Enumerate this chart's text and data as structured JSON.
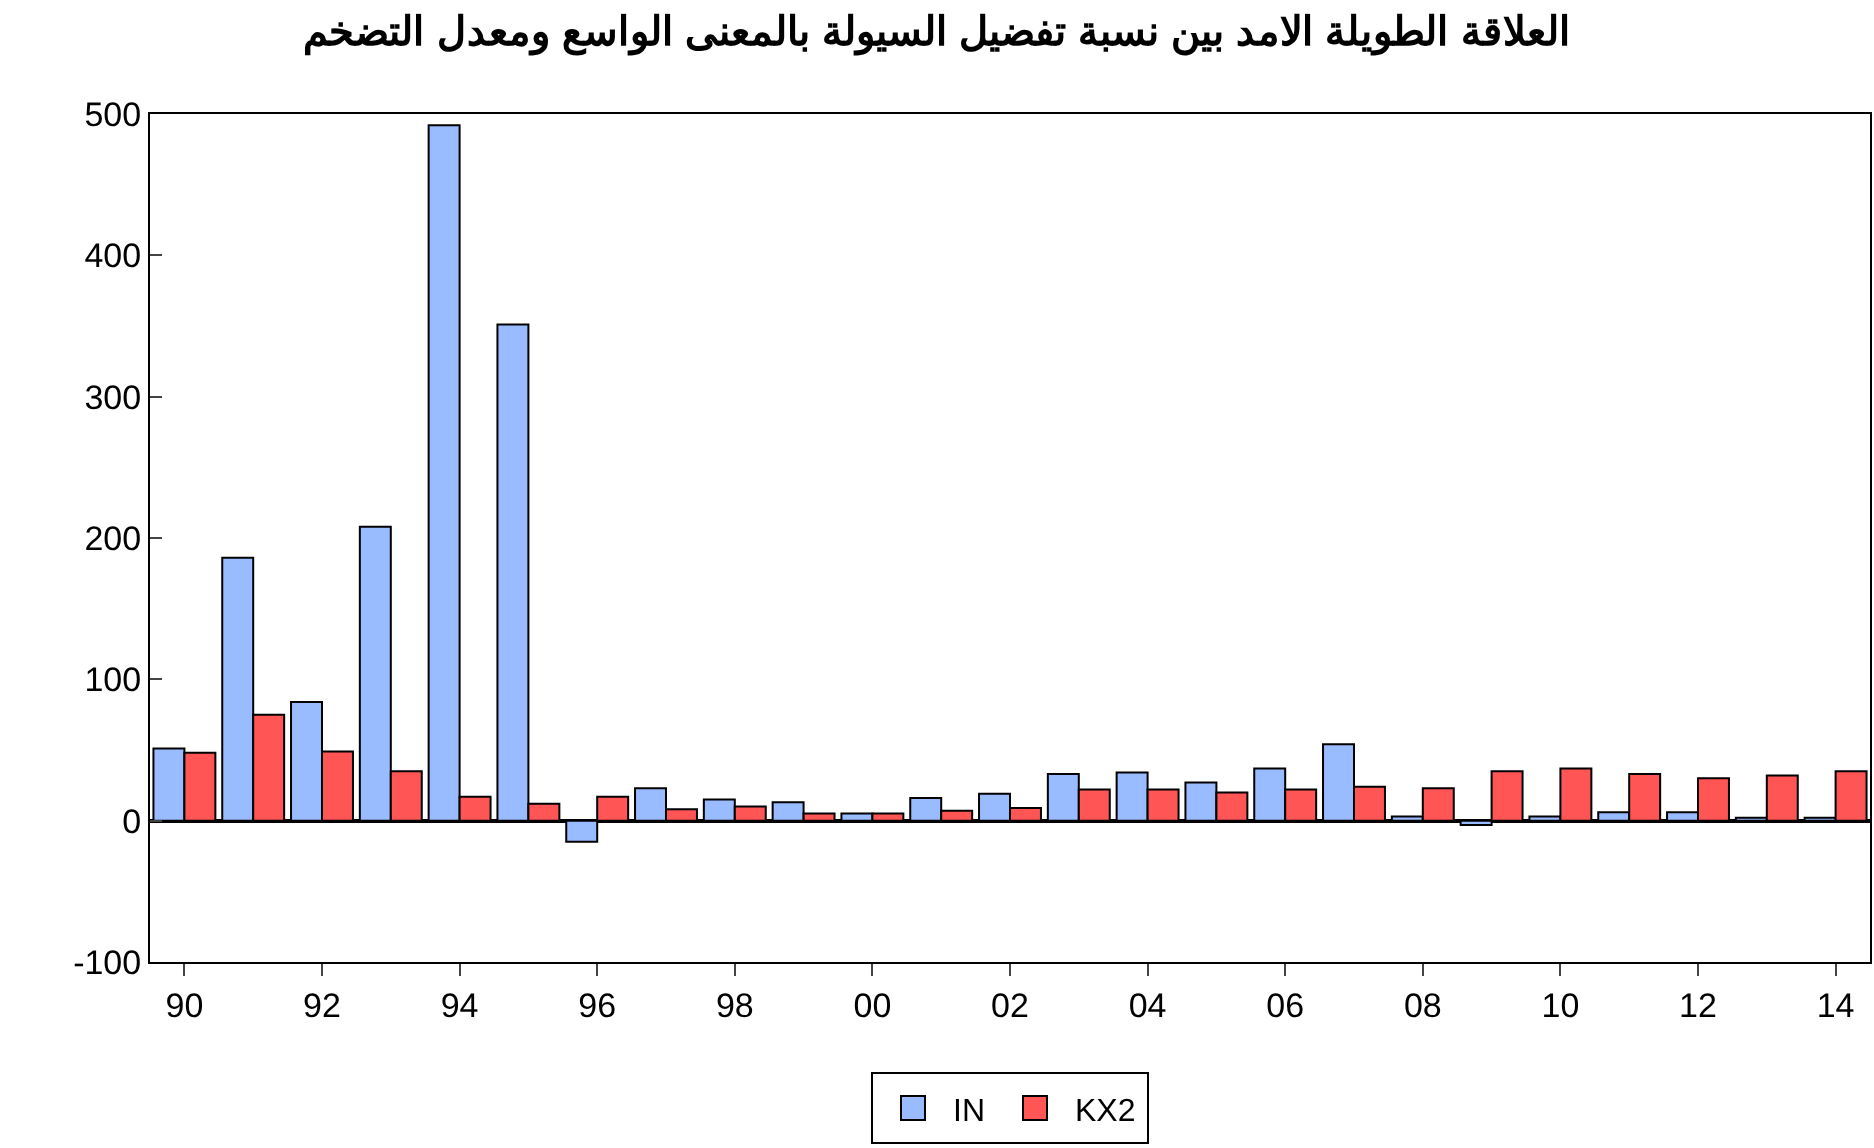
{
  "chart_data": {
    "type": "bar",
    "title": "العلاقة الطويلة الامد بين نسبة تفضيل السيولة بالمعنى الواسع ومعدل التضخم",
    "categories": [
      "90",
      null,
      "92",
      null,
      "94",
      null,
      "96",
      null,
      "98",
      null,
      "00",
      null,
      "02",
      null,
      "04",
      null,
      "06",
      null,
      "08",
      null,
      "10",
      null,
      "12",
      null,
      "14"
    ],
    "series": [
      {
        "name": "IN",
        "color": "#99bbff",
        "values": [
          51,
          186,
          84,
          208,
          492,
          351,
          -15,
          23,
          15,
          13,
          5,
          16,
          19,
          33,
          34,
          27,
          37,
          54,
          3,
          -3,
          3,
          6,
          6,
          2,
          2
        ]
      },
      {
        "name": "KX2",
        "color": "#ff5555",
        "values": [
          48,
          75,
          49,
          35,
          17,
          12,
          17,
          8,
          10,
          5,
          5,
          7,
          9,
          22,
          22,
          20,
          22,
          24,
          23,
          35,
          37,
          33,
          30,
          32,
          35
        ]
      }
    ],
    "ylim": [
      -100,
      500
    ],
    "yticks": [
      -100,
      0,
      100,
      200,
      300,
      400,
      500
    ],
    "legend": "bottom"
  }
}
